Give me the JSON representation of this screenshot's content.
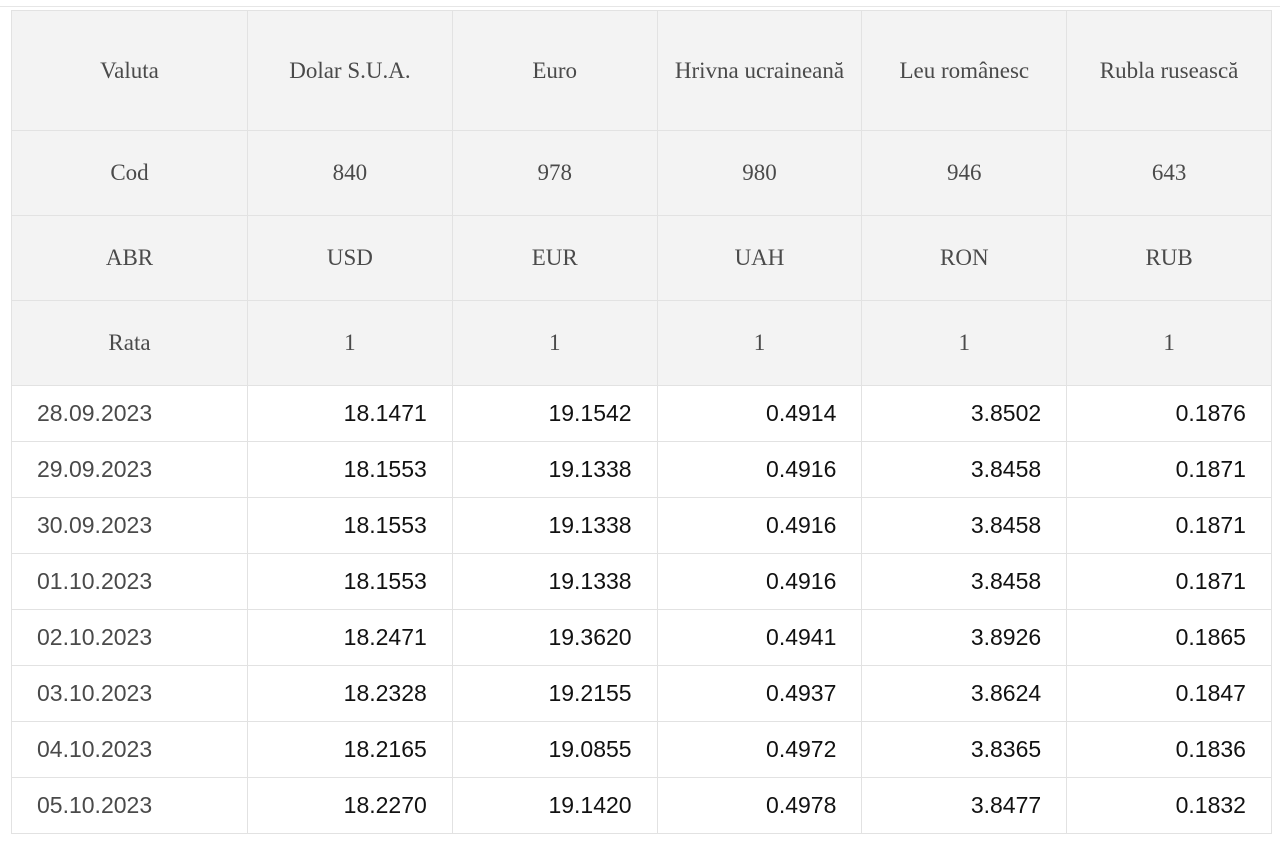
{
  "header": {
    "name_row": [
      "Valuta",
      "Dolar S.U.A.",
      "Euro",
      "Hrivna ucraineană",
      "Leu românesc",
      "Rubla rusească"
    ],
    "code_row": [
      "Cod",
      "840",
      "978",
      "980",
      "946",
      "643"
    ],
    "abbr_row": [
      "ABR",
      "USD",
      "EUR",
      "UAH",
      "RON",
      "RUB"
    ],
    "rate_row": [
      "Rata",
      "1",
      "1",
      "1",
      "1",
      "1"
    ]
  },
  "rows": [
    [
      "28.09.2023",
      "18.1471",
      "19.1542",
      "0.4914",
      "3.8502",
      "0.1876"
    ],
    [
      "29.09.2023",
      "18.1553",
      "19.1338",
      "0.4916",
      "3.8458",
      "0.1871"
    ],
    [
      "30.09.2023",
      "18.1553",
      "19.1338",
      "0.4916",
      "3.8458",
      "0.1871"
    ],
    [
      "01.10.2023",
      "18.1553",
      "19.1338",
      "0.4916",
      "3.8458",
      "0.1871"
    ],
    [
      "02.10.2023",
      "18.2471",
      "19.3620",
      "0.4941",
      "3.8926",
      "0.1865"
    ],
    [
      "03.10.2023",
      "18.2328",
      "19.2155",
      "0.4937",
      "3.8624",
      "0.1847"
    ],
    [
      "04.10.2023",
      "18.2165",
      "19.0855",
      "0.4972",
      "3.8365",
      "0.1836"
    ],
    [
      "05.10.2023",
      "18.2270",
      "19.1420",
      "0.4978",
      "3.8477",
      "0.1832"
    ]
  ]
}
